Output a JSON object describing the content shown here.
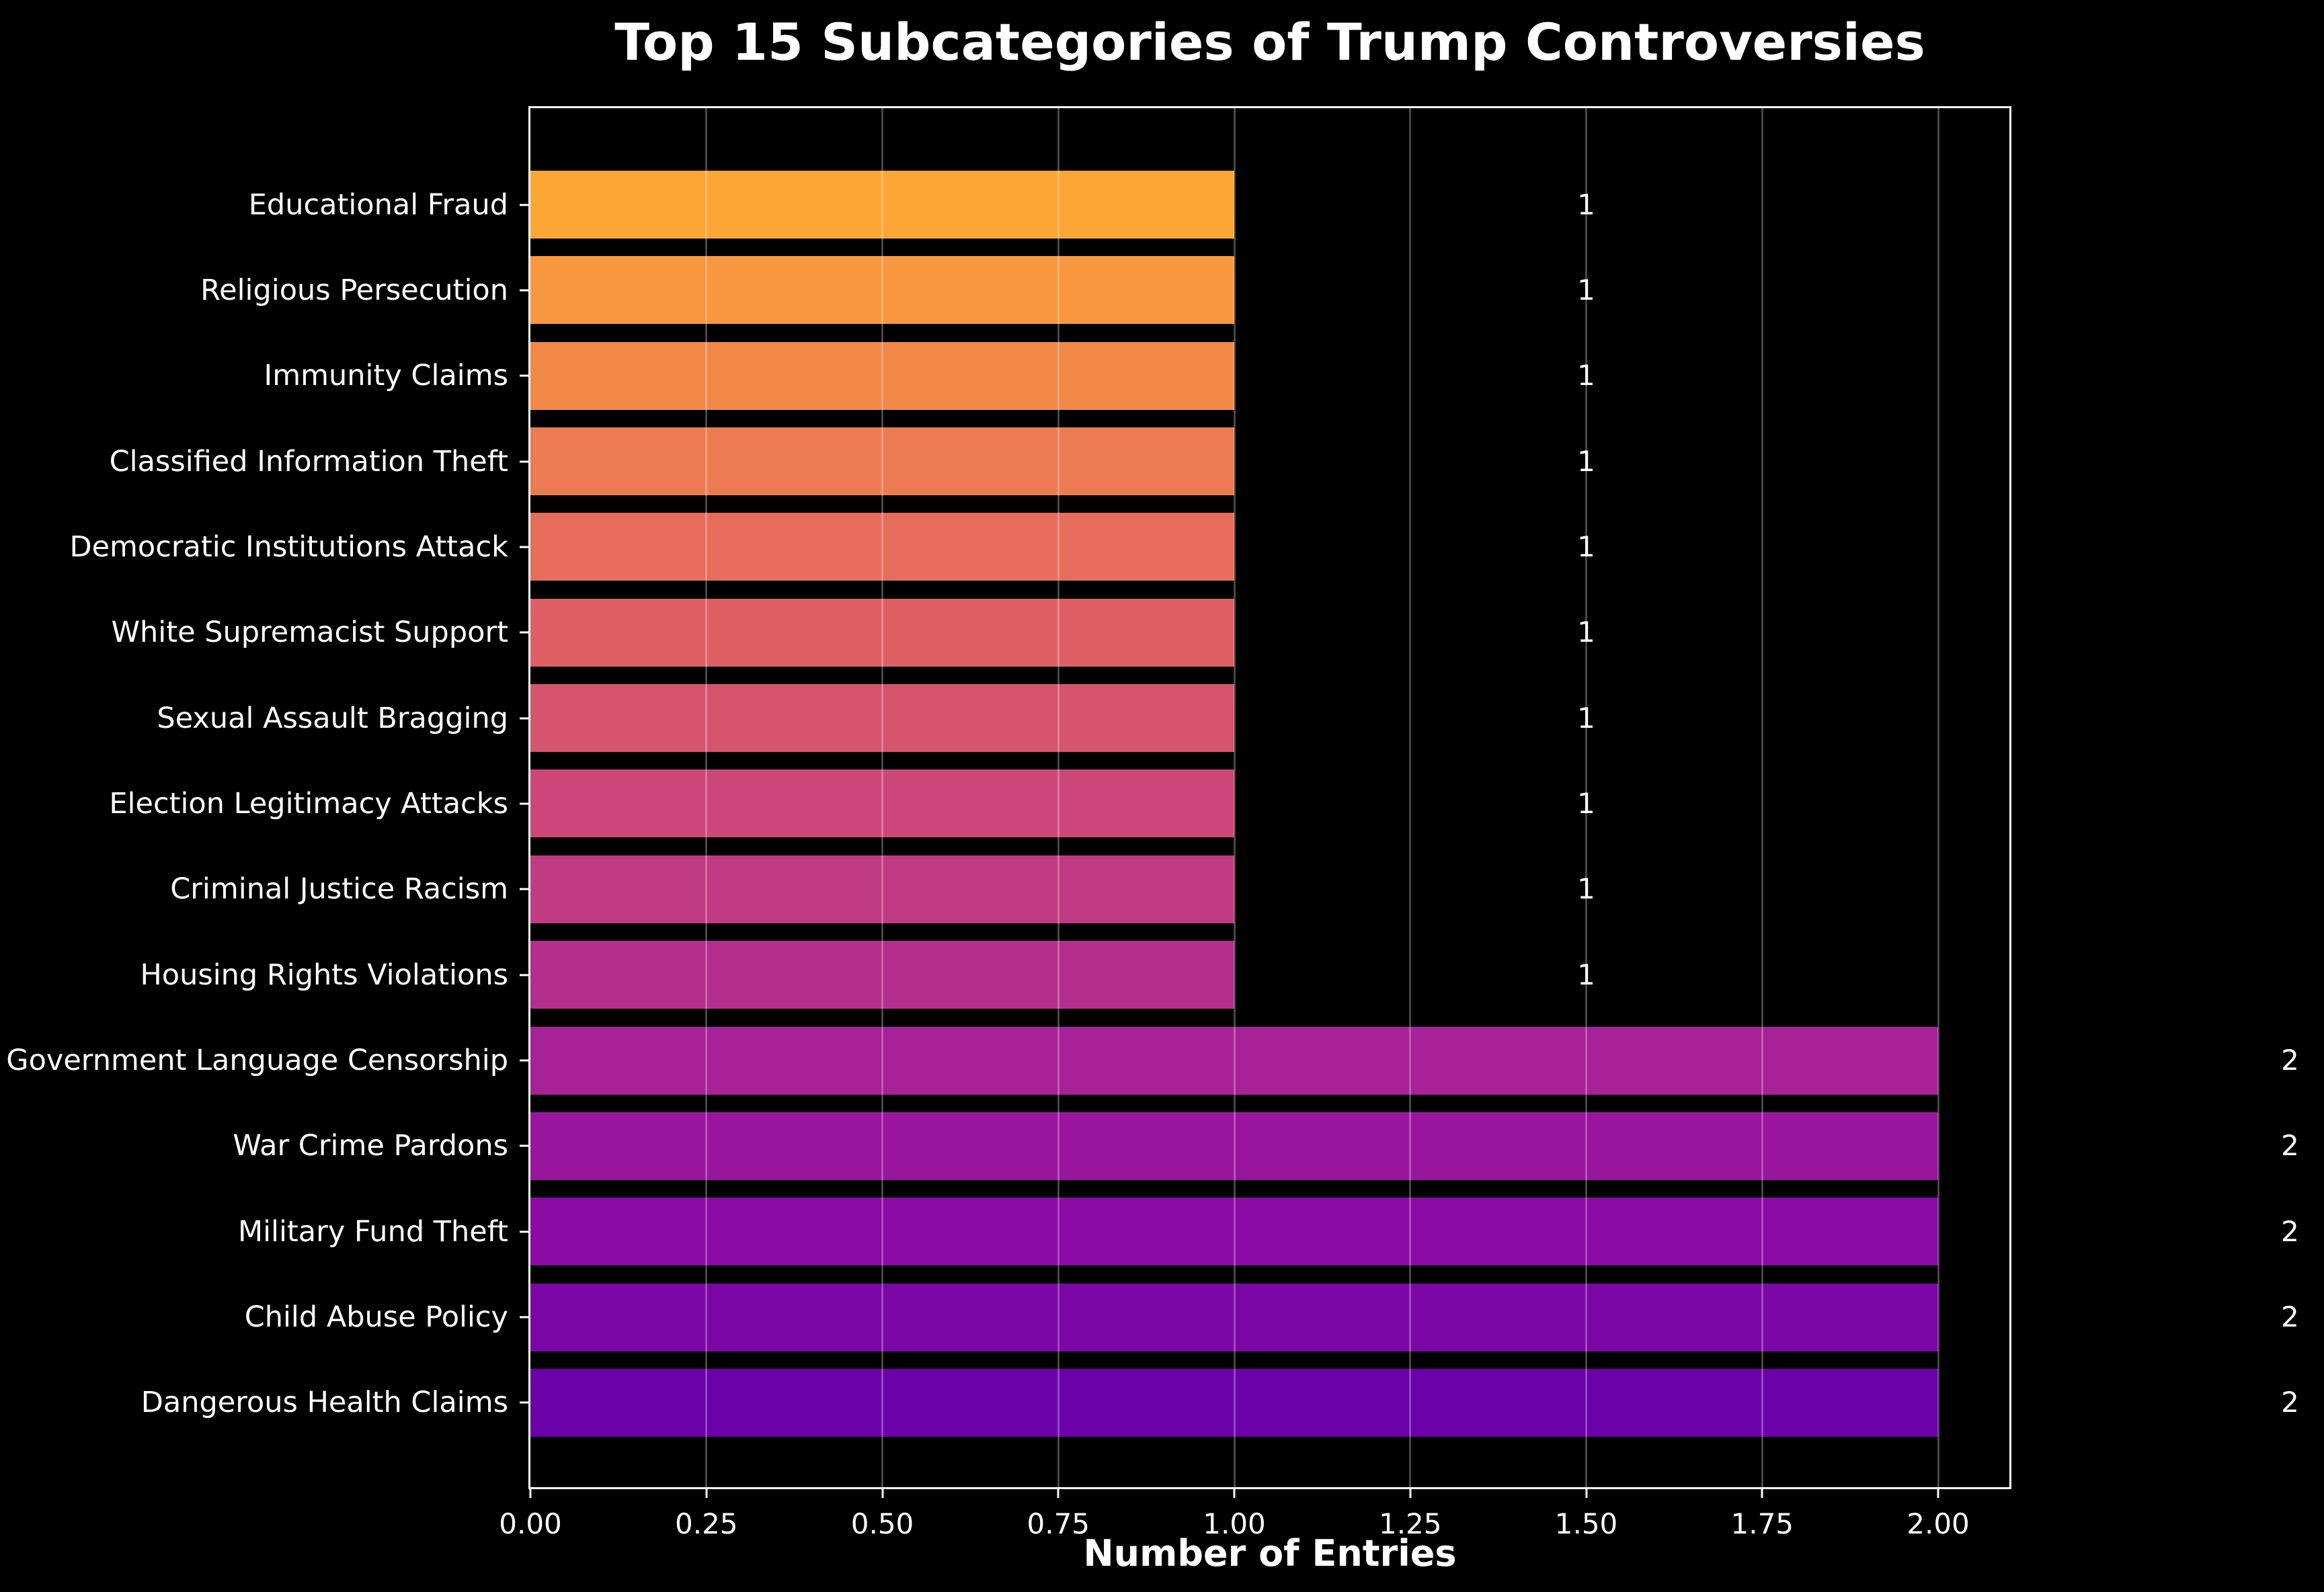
{
  "chart_data": {
    "type": "bar",
    "orientation": "horizontal",
    "title": "Top 15 Subcategories of Trump Controversies",
    "xlabel": "Number of Entries",
    "ylabel": "",
    "categories": [
      "Educational Fraud",
      "Religious Persecution",
      "Immunity Claims",
      "Classified Information Theft",
      "Democratic Institutions Attack",
      "White Supremacist Support",
      "Sexual Assault Bragging",
      "Election Legitimacy Attacks",
      "Criminal Justice Racism",
      "Housing Rights Violations",
      "Government Language Censorship",
      "War Crime Pardons",
      "Military Fund Theft",
      "Child Abuse Policy",
      "Dangerous Health Claims"
    ],
    "values": [
      1,
      1,
      1,
      1,
      1,
      1,
      1,
      1,
      1,
      1,
      2,
      2,
      2,
      2,
      2
    ],
    "value_labels": [
      "1",
      "1",
      "1",
      "1",
      "1",
      "1",
      "1",
      "1",
      "1",
      "1",
      "2",
      "2",
      "2",
      "2",
      "2"
    ],
    "bar_colors": [
      "#fca636",
      "#f8973f",
      "#f38948",
      "#ed7b52",
      "#e66d5b",
      "#de6065",
      "#d5546e",
      "#cc4778",
      "#c03b82",
      "#b52e8d",
      "#a72296",
      "#99159e",
      "#8a0ba5",
      "#7a06a6",
      "#6a00a8"
    ],
    "xticks": [
      "0.00",
      "0.25",
      "0.50",
      "0.75",
      "1.00",
      "1.25",
      "1.50",
      "1.75",
      "2.00"
    ],
    "xtick_step": 0.25,
    "xlim": [
      0,
      2.1
    ],
    "grid": true,
    "legend": false,
    "colors": {
      "background": "#000000",
      "text": "#ffffff",
      "spine": "#ffffff",
      "gridline": "rgba(255,255,255,0.28)"
    }
  }
}
